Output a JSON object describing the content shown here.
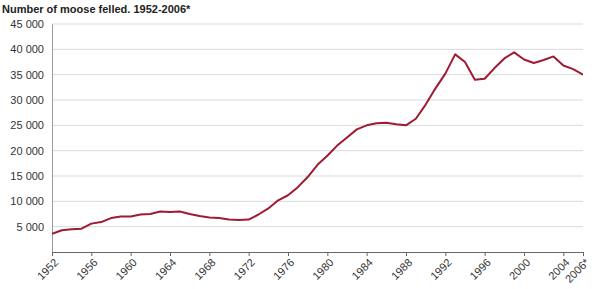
{
  "chart_data": {
    "type": "line",
    "title": "Number of moose felled. 1952-2006*",
    "color": "#9e1b32",
    "grid": true,
    "x": [
      1952,
      1953,
      1954,
      1955,
      1956,
      1957,
      1958,
      1959,
      1960,
      1961,
      1962,
      1963,
      1964,
      1965,
      1966,
      1967,
      1968,
      1969,
      1970,
      1971,
      1972,
      1973,
      1974,
      1975,
      1976,
      1977,
      1978,
      1979,
      1980,
      1981,
      1982,
      1983,
      1984,
      1985,
      1986,
      1987,
      1988,
      1989,
      1990,
      1991,
      1992,
      1993,
      1994,
      1995,
      1996,
      1997,
      1998,
      1999,
      2000,
      2001,
      2002,
      2003,
      2004,
      2005,
      2006
    ],
    "values": [
      3600,
      4300,
      4500,
      4600,
      5600,
      5900,
      6700,
      7000,
      7000,
      7400,
      7500,
      8000,
      7900,
      8000,
      7500,
      7100,
      6800,
      6700,
      6400,
      6300,
      6400,
      7400,
      8600,
      10200,
      11200,
      12800,
      14800,
      17200,
      19000,
      21000,
      22600,
      24200,
      25000,
      25400,
      25500,
      25200,
      25000,
      26300,
      29100,
      32300,
      35200,
      39000,
      37500,
      34000,
      34200,
      36300,
      38200,
      39400,
      38000,
      37300,
      37900,
      38600,
      36800,
      36100,
      35000
    ],
    "xlim": [
      1952,
      2006
    ],
    "xticks": [
      1952,
      1956,
      1960,
      1964,
      1968,
      1972,
      1976,
      1980,
      1984,
      1988,
      1992,
      1996,
      2000,
      2004,
      {
        "value": 2006,
        "label": "2006*"
      }
    ],
    "ylim": [
      0,
      45000
    ],
    "yticks": [
      {
        "value": 5000,
        "label": "5 000"
      },
      {
        "value": 10000,
        "label": "10 000"
      },
      {
        "value": 15000,
        "label": "15 000"
      },
      {
        "value": 20000,
        "label": "20 000"
      },
      {
        "value": 25000,
        "label": "25 000"
      },
      {
        "value": 30000,
        "label": "30 000"
      },
      {
        "value": 35000,
        "label": "35 000"
      },
      {
        "value": 40000,
        "label": "40 000"
      },
      {
        "value": 45000,
        "label": "45 000"
      }
    ]
  }
}
